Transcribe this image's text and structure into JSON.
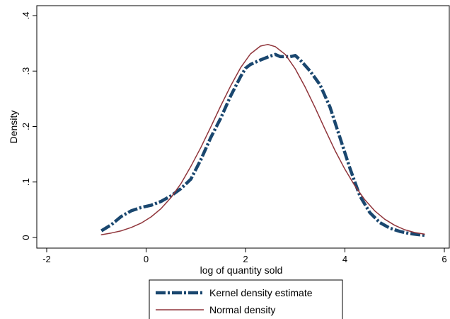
{
  "chart_data": {
    "type": "line",
    "title": "",
    "xlabel": "log of quantity sold",
    "ylabel": "Density",
    "xlim": [
      -2.1,
      6.1
    ],
    "ylim": [
      0,
      0.4
    ],
    "x_ticks": [
      {
        "value": -2,
        "label": "-2"
      },
      {
        "value": 0,
        "label": "0"
      },
      {
        "value": 2,
        "label": "2"
      },
      {
        "value": 4,
        "label": "4"
      },
      {
        "value": 6,
        "label": "6"
      }
    ],
    "y_ticks": [
      {
        "value": 0,
        "label": "0"
      },
      {
        "value": 0.1,
        "label": ".1"
      },
      {
        "value": 0.2,
        "label": ".2"
      },
      {
        "value": 0.3,
        "label": ".3"
      },
      {
        "value": 0.4,
        "label": ".4"
      }
    ],
    "grid": false,
    "legend_position": "bottom",
    "series": [
      {
        "name": "Kernel density estimate",
        "color": "#1a476f",
        "style": "dash-dot",
        "x": [
          -0.9,
          -0.7,
          -0.5,
          -0.3,
          -0.1,
          0.1,
          0.3,
          0.5,
          0.7,
          0.9,
          1.1,
          1.3,
          1.5,
          1.7,
          1.9,
          2.0,
          2.1,
          2.3,
          2.5,
          2.6,
          2.7,
          2.9,
          3.0,
          3.1,
          3.3,
          3.5,
          3.7,
          3.9,
          4.1,
          4.3,
          4.5,
          4.7,
          4.9,
          5.1,
          5.3,
          5.5,
          5.6
        ],
        "y": [
          0.012,
          0.023,
          0.038,
          0.048,
          0.054,
          0.058,
          0.065,
          0.075,
          0.088,
          0.105,
          0.14,
          0.18,
          0.215,
          0.255,
          0.29,
          0.305,
          0.312,
          0.32,
          0.327,
          0.33,
          0.326,
          0.326,
          0.328,
          0.32,
          0.3,
          0.275,
          0.235,
          0.18,
          0.125,
          0.075,
          0.045,
          0.027,
          0.017,
          0.011,
          0.007,
          0.005,
          0.004
        ]
      },
      {
        "name": "Normal density",
        "color": "#90353b",
        "style": "solid",
        "x": [
          -0.9,
          -0.7,
          -0.5,
          -0.3,
          -0.1,
          0.1,
          0.3,
          0.5,
          0.7,
          0.9,
          1.1,
          1.3,
          1.5,
          1.7,
          1.9,
          2.1,
          2.3,
          2.45,
          2.6,
          2.8,
          3.0,
          3.2,
          3.4,
          3.6,
          3.8,
          4.0,
          4.2,
          4.4,
          4.6,
          4.8,
          5.0,
          5.2,
          5.4,
          5.6
        ],
        "y": [
          0.005,
          0.008,
          0.012,
          0.018,
          0.026,
          0.037,
          0.052,
          0.072,
          0.097,
          0.128,
          0.162,
          0.199,
          0.237,
          0.273,
          0.306,
          0.331,
          0.345,
          0.348,
          0.344,
          0.33,
          0.304,
          0.271,
          0.234,
          0.195,
          0.157,
          0.123,
          0.093,
          0.068,
          0.048,
          0.033,
          0.022,
          0.014,
          0.009,
          0.006
        ]
      }
    ]
  }
}
